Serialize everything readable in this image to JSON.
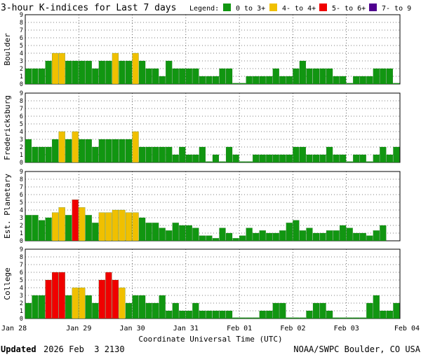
{
  "title": "3-hour K-indices for Last 7 days",
  "legend": {
    "label": "Legend:",
    "items": [
      {
        "text": "0 to 3+",
        "color": "#119611"
      },
      {
        "text": "4- to 4+",
        "color": "#f0c000"
      },
      {
        "text": "5- to 6+",
        "color": "#f00000"
      },
      {
        "text": "7- to 9",
        "color": "#500090"
      }
    ]
  },
  "footer": {
    "updated_label": "Updated",
    "updated_value": "2026 Feb  3 2130",
    "source": "NOAA/SWPC Boulder, CO USA"
  },
  "chart_data": {
    "type": "bar",
    "title": "3-hour K-indices for Last 7 days",
    "xlabel": "Coordinate Universal Time (UTC)",
    "x_ticks": [
      "Jan 28",
      "Jan 29",
      "Jan 30",
      "Jan 31",
      "Feb 01",
      "Feb 02",
      "Feb 03",
      "Feb 04"
    ],
    "ylim": [
      0,
      9
    ],
    "y_ticks": [
      "0",
      "1",
      "2",
      "3",
      "4",
      "5",
      "6",
      "7",
      "8",
      "9"
    ],
    "grid": true,
    "interval_hours": 3,
    "panels": [
      {
        "name": "Boulder",
        "values": [
          2,
          2,
          2,
          3,
          4,
          4,
          3,
          3,
          3,
          3,
          2,
          3,
          3,
          4,
          3,
          3,
          4,
          3,
          2,
          2,
          1,
          3,
          2,
          2,
          2,
          2,
          1,
          1,
          1,
          2,
          2,
          0,
          0,
          1,
          1,
          1,
          1,
          2,
          1,
          1,
          2,
          3,
          2,
          2,
          2,
          2,
          1,
          1,
          0,
          1,
          1,
          1,
          2,
          2,
          2,
          0
        ]
      },
      {
        "name": "Fredericksburg",
        "values": [
          3,
          2,
          2,
          2,
          3,
          4,
          3,
          4,
          3,
          3,
          2,
          3,
          3,
          3,
          3,
          3,
          4,
          2,
          2,
          2,
          2,
          2,
          1,
          2,
          1,
          1,
          2,
          0,
          1,
          0,
          2,
          1,
          0,
          0,
          1,
          1,
          1,
          1,
          1,
          1,
          2,
          2,
          1,
          1,
          1,
          2,
          1,
          1,
          0,
          1,
          1,
          0,
          1,
          2,
          1,
          2
        ]
      },
      {
        "name": "Est. Planetary",
        "values": [
          3.33,
          3.33,
          2.67,
          3,
          3.67,
          4.33,
          3.33,
          5.33,
          4.33,
          3.33,
          2.33,
          3.67,
          3.67,
          4,
          4,
          3.67,
          3.67,
          3,
          2.33,
          2.33,
          1.67,
          1.33,
          2.33,
          2,
          2,
          1.67,
          0.67,
          0.67,
          0.33,
          1.67,
          1,
          0.33,
          0.67,
          1.67,
          1,
          1.33,
          1,
          1,
          1.33,
          2.33,
          2.67,
          1.33,
          1.67,
          1,
          1,
          1.33,
          1.33,
          2,
          1.67,
          1,
          1,
          0.67,
          1.33,
          2
        ]
      },
      {
        "name": "College",
        "values": [
          2,
          3,
          3,
          5,
          6,
          6,
          3,
          4,
          4,
          3,
          2,
          5,
          6,
          5,
          4,
          2,
          3,
          3,
          2,
          2,
          3,
          1,
          2,
          1,
          1,
          2,
          1,
          1,
          1,
          1,
          1,
          0,
          0,
          0,
          0,
          1,
          1,
          2,
          2,
          0,
          0,
          0,
          1,
          2,
          2,
          1,
          0,
          0,
          0,
          0,
          0,
          2,
          3,
          1,
          1,
          2
        ]
      }
    ]
  }
}
